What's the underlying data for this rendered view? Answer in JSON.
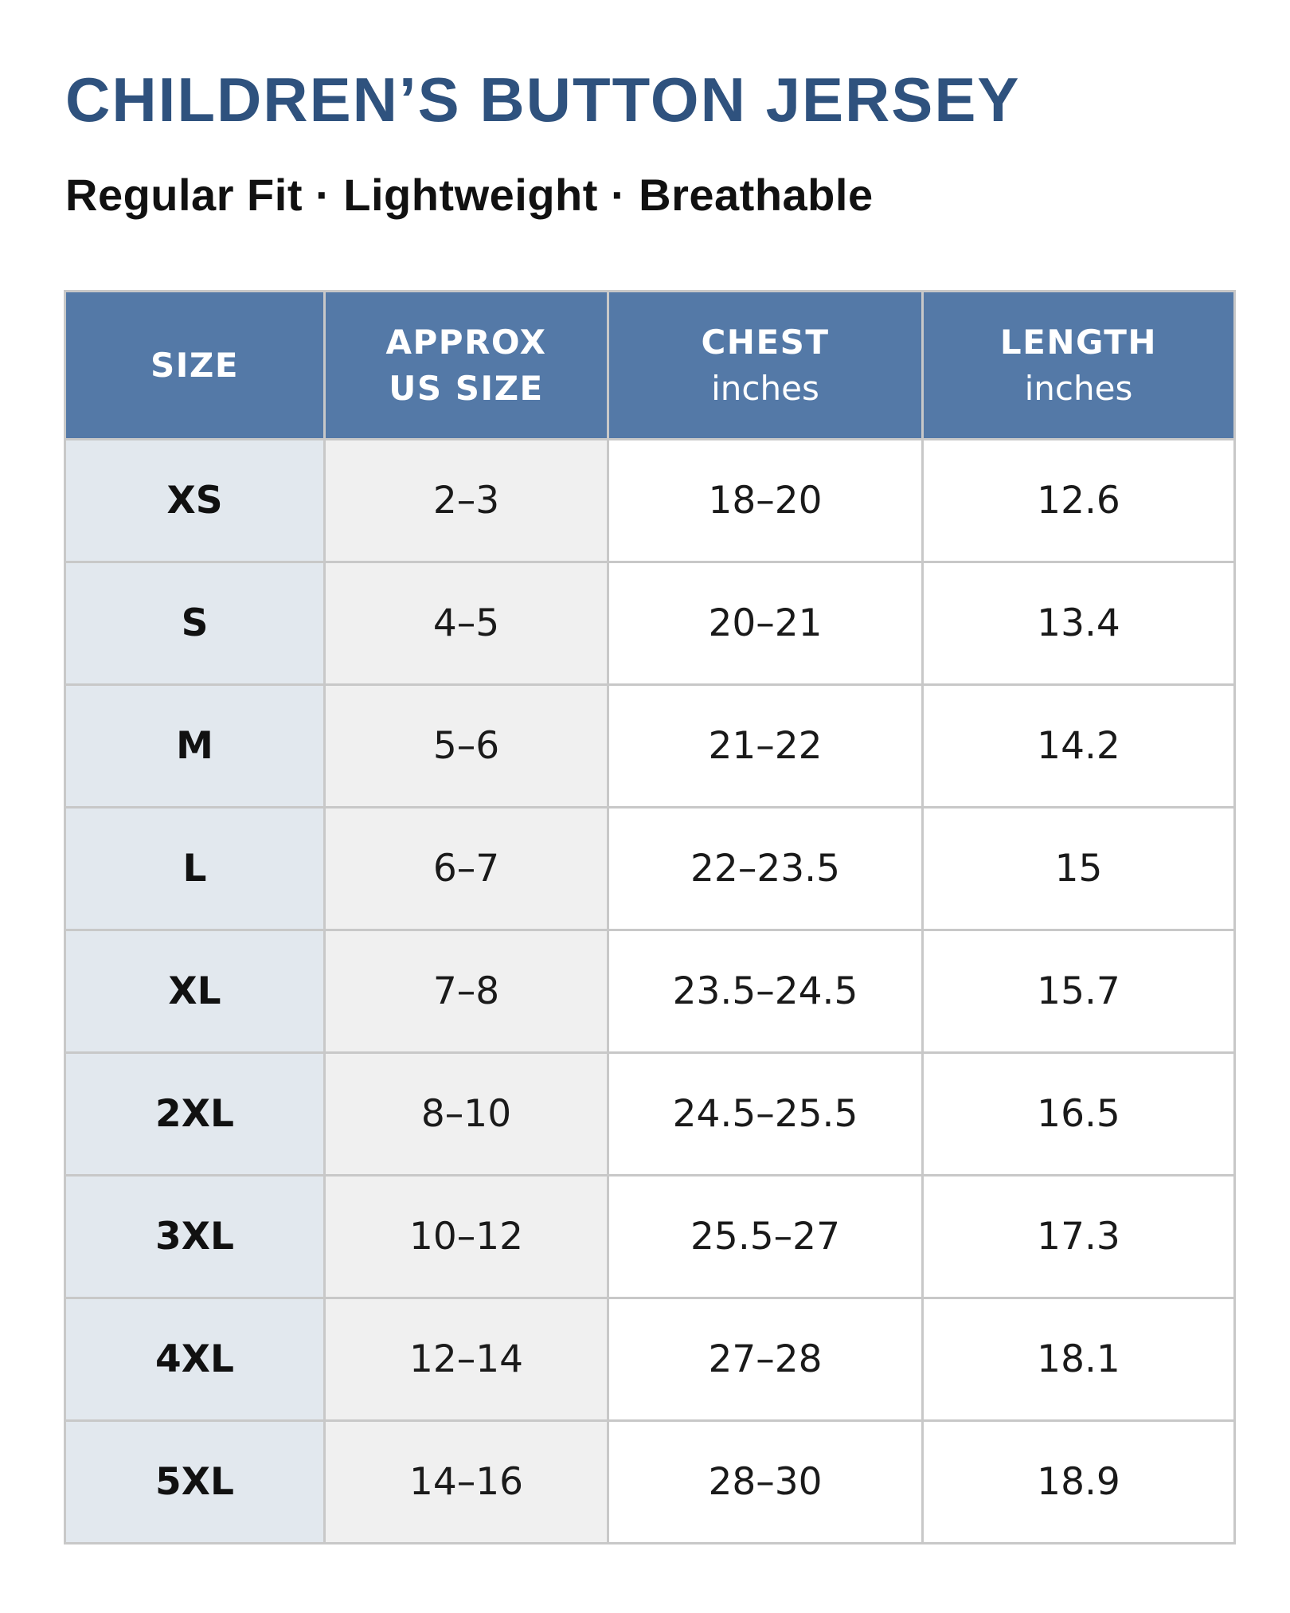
{
  "header": {
    "title": "CHILDREN’S BUTTON JERSEY",
    "subtitle": "Regular Fit · Lightweight · Breathable"
  },
  "table": {
    "columns": {
      "size": {
        "label": "SIZE"
      },
      "us_size": {
        "label_line1": "APPROX",
        "label_line2": "US SIZE"
      },
      "chest": {
        "label": "CHEST",
        "unit": "inches"
      },
      "length": {
        "label": "LENGTH",
        "unit": "inches"
      }
    },
    "rows": [
      {
        "size": "XS",
        "us_size": "2–3",
        "chest": "18–20",
        "length": "12.6"
      },
      {
        "size": "S",
        "us_size": "4–5",
        "chest": "20–21",
        "length": "13.4"
      },
      {
        "size": "M",
        "us_size": "5–6",
        "chest": "21–22",
        "length": "14.2"
      },
      {
        "size": "L",
        "us_size": "6–7",
        "chest": "22–23.5",
        "length": "15"
      },
      {
        "size": "XL",
        "us_size": "7–8",
        "chest": "23.5–24.5",
        "length": "15.7"
      },
      {
        "size": "2XL",
        "us_size": "8–10",
        "chest": "24.5–25.5",
        "length": "16.5"
      },
      {
        "size": "3XL",
        "us_size": "10–12",
        "chest": "25.5–27",
        "length": "17.3"
      },
      {
        "size": "4XL",
        "us_size": "12–14",
        "chest": "27–28",
        "length": "18.1"
      },
      {
        "size": "5XL",
        "us_size": "14–16",
        "chest": "28–30",
        "length": "18.9"
      }
    ]
  },
  "colors": {
    "title": "#2f527e",
    "header_bg": "#5479a7",
    "size_column_bg": "#e2e8ee",
    "us_column_bg": "#f0f0f0",
    "grid_line": "#c8c8c8"
  }
}
